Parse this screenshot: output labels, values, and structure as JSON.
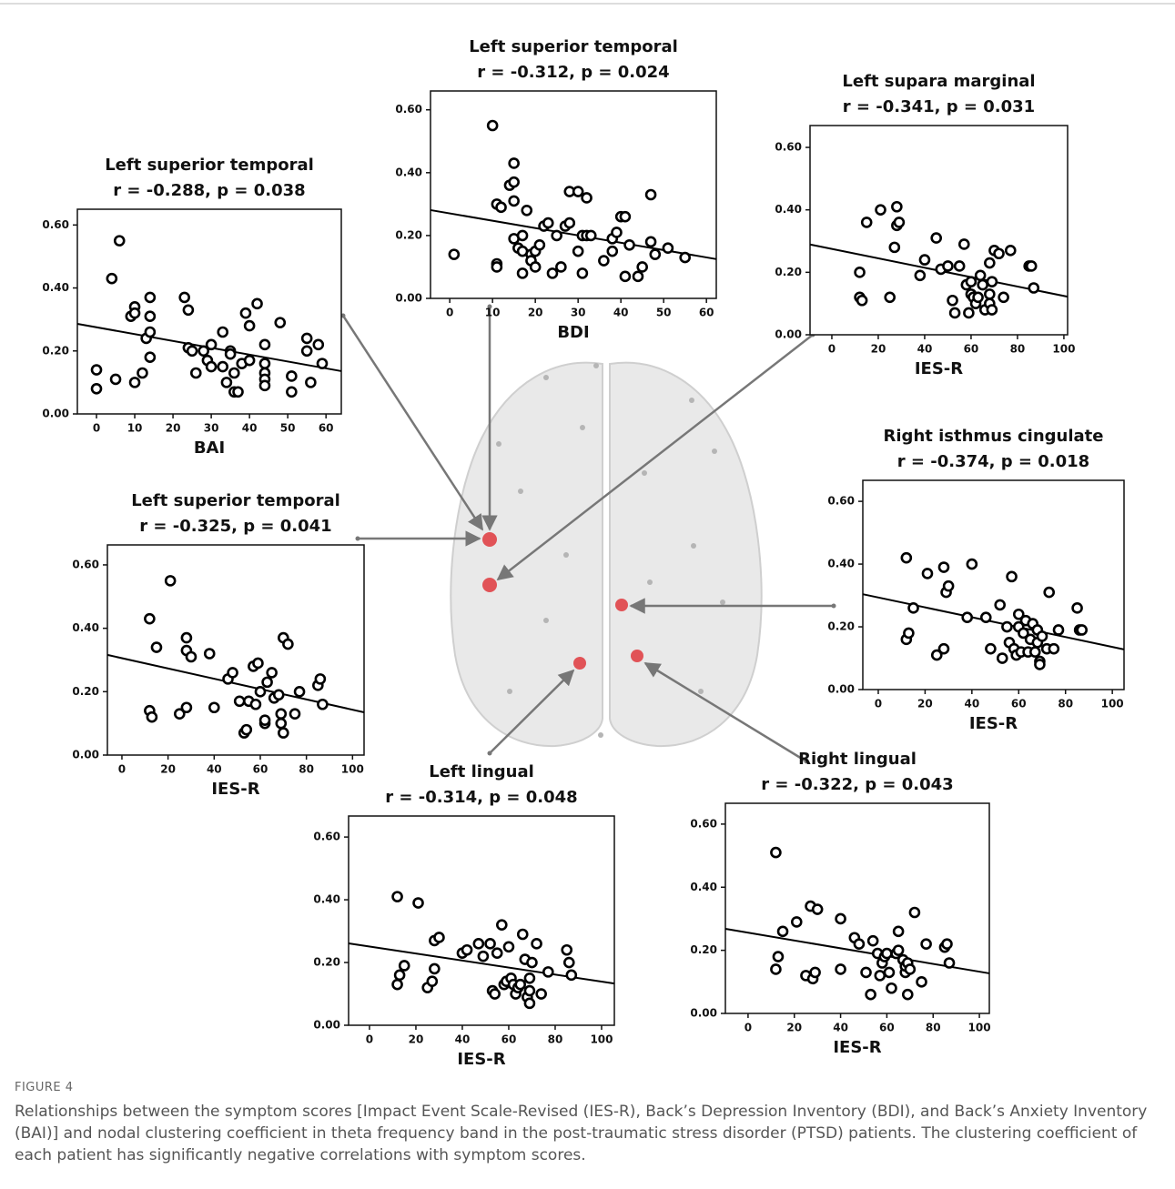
{
  "figure": {
    "label": "FIGURE 4",
    "caption": "Relationships between the symptom scores [Impact Event Scale-Revised (IES-R), Back’s Depression Inventory (BDI), and Back’s Anxiety Inventory (BAI)] and nodal clustering coefficient in theta frequency band in the post-traumatic stress disorder (PTSD) patients. The clustering coefficient of each patient has significantly negative correlations with symptom scores."
  },
  "chart_data": [
    {
      "type": "scatter",
      "title": "Left superior temporal",
      "subtitle": "r = -0.288, p = 0.038",
      "x_label": "BAI",
      "color": "#000000",
      "x": [
        0,
        0,
        4,
        5,
        6,
        9,
        10,
        10,
        10,
        12,
        13,
        14,
        14,
        14,
        14,
        23,
        24,
        24,
        25,
        26,
        28,
        29,
        30,
        30,
        33,
        33,
        34,
        35,
        35,
        36,
        36,
        37,
        38,
        39,
        40,
        40,
        42,
        44,
        44,
        44,
        44,
        44,
        48,
        51,
        51,
        55,
        55,
        56,
        58,
        59
      ],
      "values": [
        0.14,
        0.08,
        0.43,
        0.11,
        0.55,
        0.31,
        0.34,
        0.32,
        0.1,
        0.13,
        0.24,
        0.37,
        0.31,
        0.26,
        0.18,
        0.37,
        0.33,
        0.21,
        0.2,
        0.13,
        0.2,
        0.17,
        0.22,
        0.15,
        0.26,
        0.15,
        0.1,
        0.2,
        0.19,
        0.07,
        0.13,
        0.07,
        0.16,
        0.32,
        0.17,
        0.28,
        0.35,
        0.22,
        0.16,
        0.13,
        0.11,
        0.09,
        0.29,
        0.12,
        0.07,
        0.24,
        0.2,
        0.1,
        0.22,
        0.16
      ],
      "trend_line": {
        "x": [
          -5,
          64
        ],
        "values": [
          0.286,
          0.136
        ]
      },
      "xlim": [
        -5,
        64
      ],
      "ylim": [
        0,
        0.65
      ],
      "xticks": [
        0,
        10,
        20,
        30,
        40,
        50,
        60
      ],
      "yticks": [
        {
          "value": 0,
          "label": "0.00"
        },
        {
          "value": 0.2,
          "label": "0.20"
        },
        {
          "value": 0.4,
          "label": "0.40"
        },
        {
          "value": 0.6,
          "label": "0.60"
        }
      ]
    },
    {
      "type": "scatter",
      "title": "Left superior temporal",
      "subtitle": "r = -0.312, p = 0.024",
      "x_label": "BDI",
      "color": "#000000",
      "x": [
        1,
        10,
        11,
        11,
        11,
        12,
        14,
        15,
        15,
        15,
        15,
        16,
        17,
        17,
        17,
        18,
        19,
        19,
        20,
        20,
        21,
        22,
        23,
        24,
        25,
        26,
        27,
        28,
        28,
        30,
        30,
        31,
        31,
        32,
        32,
        33,
        36,
        38,
        38,
        39,
        40,
        41,
        41,
        42,
        44,
        45,
        47,
        47,
        48,
        51,
        55
      ],
      "values": [
        0.14,
        0.55,
        0.3,
        0.11,
        0.1,
        0.29,
        0.36,
        0.43,
        0.37,
        0.31,
        0.19,
        0.16,
        0.2,
        0.15,
        0.08,
        0.28,
        0.14,
        0.12,
        0.15,
        0.1,
        0.17,
        0.23,
        0.24,
        0.08,
        0.2,
        0.1,
        0.23,
        0.24,
        0.34,
        0.34,
        0.15,
        0.08,
        0.2,
        0.32,
        0.2,
        0.2,
        0.12,
        0.19,
        0.15,
        0.21,
        0.26,
        0.26,
        0.07,
        0.17,
        0.07,
        0.1,
        0.33,
        0.18,
        0.14,
        0.16,
        0.13
      ],
      "trend_line": {
        "x": [
          -4.5,
          62.3
        ],
        "values": [
          0.281,
          0.125
        ]
      },
      "xlim": [
        -4.5,
        62.3
      ],
      "ylim": [
        0,
        0.66
      ],
      "xticks": [
        0,
        10,
        20,
        30,
        40,
        50,
        60
      ],
      "yticks": [
        {
          "value": 0,
          "label": "0.00"
        },
        {
          "value": 0.2,
          "label": "0.20"
        },
        {
          "value": 0.4,
          "label": "0.40"
        },
        {
          "value": 0.6,
          "label": "0.60"
        }
      ]
    },
    {
      "type": "scatter",
      "title": "Left supara marginal",
      "subtitle": "r = -0.341, p = 0.031",
      "x_label": "IES-R",
      "color": "#000000",
      "x": [
        12,
        12,
        13,
        15,
        21,
        25,
        27,
        28,
        28,
        29,
        38,
        40,
        45,
        47,
        50,
        52,
        53,
        55,
        57,
        58,
        59,
        60,
        60,
        61,
        62,
        63,
        64,
        65,
        66,
        68,
        68,
        68,
        69,
        69,
        70,
        72,
        74,
        77,
        85,
        86,
        87
      ],
      "values": [
        0.2,
        0.12,
        0.11,
        0.36,
        0.4,
        0.12,
        0.28,
        0.41,
        0.35,
        0.36,
        0.19,
        0.24,
        0.31,
        0.21,
        0.22,
        0.11,
        0.07,
        0.22,
        0.29,
        0.16,
        0.07,
        0.17,
        0.13,
        0.12,
        0.1,
        0.12,
        0.19,
        0.16,
        0.08,
        0.13,
        0.1,
        0.23,
        0.17,
        0.08,
        0.27,
        0.26,
        0.12,
        0.27,
        0.22,
        0.22,
        0.15
      ],
      "trend_line": {
        "x": [
          -9.4,
          101.6
        ],
        "values": [
          0.289,
          0.122
        ]
      },
      "xlim": [
        -9.4,
        101.6
      ],
      "ylim": [
        0,
        0.67
      ],
      "xticks": [
        0,
        20,
        40,
        60,
        80,
        100
      ],
      "yticks": [
        {
          "value": 0,
          "label": "0.00"
        },
        {
          "value": 0.2,
          "label": "0.20"
        },
        {
          "value": 0.4,
          "label": "0.40"
        },
        {
          "value": 0.6,
          "label": "0.60"
        }
      ]
    },
    {
      "type": "scatter",
      "title": "Right isthmus cingulate",
      "subtitle": "r = -0.374, p = 0.018",
      "x_label": "IES-R",
      "color": "#000000",
      "x": [
        12,
        12,
        13,
        15,
        21,
        25,
        28,
        28,
        29,
        30,
        38,
        40,
        46,
        48,
        52,
        53,
        55,
        56,
        57,
        58,
        59,
        60,
        60,
        61,
        62,
        63,
        64,
        65,
        66,
        67,
        68,
        68,
        69,
        69,
        70,
        72,
        73,
        75,
        77,
        85,
        86,
        87
      ],
      "values": [
        0.42,
        0.16,
        0.18,
        0.26,
        0.37,
        0.11,
        0.39,
        0.13,
        0.31,
        0.33,
        0.23,
        0.4,
        0.23,
        0.13,
        0.27,
        0.1,
        0.2,
        0.15,
        0.36,
        0.13,
        0.11,
        0.24,
        0.2,
        0.12,
        0.18,
        0.22,
        0.12,
        0.16,
        0.21,
        0.12,
        0.19,
        0.15,
        0.09,
        0.08,
        0.17,
        0.13,
        0.31,
        0.13,
        0.19,
        0.26,
        0.19,
        0.19
      ],
      "trend_line": {
        "x": [
          -6.6,
          105
        ],
        "values": [
          0.304,
          0.128
        ]
      },
      "xlim": [
        -6.6,
        105
      ],
      "ylim": [
        0,
        0.667
      ],
      "xticks": [
        0,
        20,
        40,
        60,
        80,
        100
      ],
      "yticks": [
        {
          "value": 0,
          "label": "0.00"
        },
        {
          "value": 0.2,
          "label": "0.20"
        },
        {
          "value": 0.4,
          "label": "0.40"
        },
        {
          "value": 0.6,
          "label": "0.60"
        }
      ]
    },
    {
      "type": "scatter",
      "title": "Left superior temporal",
      "subtitle": "r = -0.325, p = 0.041",
      "x_label": "IES-R",
      "color": "#000000",
      "x": [
        12,
        12,
        13,
        15,
        21,
        25,
        28,
        28,
        28,
        30,
        38,
        40,
        46,
        48,
        51,
        53,
        54,
        55,
        57,
        58,
        59,
        60,
        62,
        62,
        63,
        65,
        66,
        68,
        69,
        69,
        70,
        70,
        72,
        75,
        77,
        85,
        86,
        87
      ],
      "values": [
        0.43,
        0.14,
        0.12,
        0.34,
        0.55,
        0.13,
        0.37,
        0.15,
        0.33,
        0.31,
        0.32,
        0.15,
        0.24,
        0.26,
        0.17,
        0.07,
        0.08,
        0.17,
        0.28,
        0.16,
        0.29,
        0.2,
        0.1,
        0.11,
        0.23,
        0.26,
        0.18,
        0.19,
        0.13,
        0.1,
        0.07,
        0.37,
        0.35,
        0.13,
        0.2,
        0.22,
        0.24,
        0.16
      ],
      "trend_line": {
        "x": [
          -6.3,
          105
        ],
        "values": [
          0.316,
          0.135
        ]
      },
      "xlim": [
        -6.3,
        105
      ],
      "ylim": [
        0,
        0.663
      ],
      "xticks": [
        0,
        20,
        40,
        60,
        80,
        100
      ],
      "yticks": [
        {
          "value": 0,
          "label": "0.00"
        },
        {
          "value": 0.2,
          "label": "0.20"
        },
        {
          "value": 0.4,
          "label": "0.40"
        },
        {
          "value": 0.6,
          "label": "0.60"
        }
      ]
    },
    {
      "type": "scatter",
      "title": "Left lingual",
      "subtitle": "r = -0.314, p = 0.048",
      "x_label": "IES-R",
      "color": "#000000",
      "x": [
        12,
        12,
        13,
        15,
        21,
        25,
        27,
        28,
        28,
        30,
        40,
        42,
        47,
        49,
        52,
        53,
        54,
        55,
        57,
        58,
        59,
        60,
        61,
        62,
        63,
        64,
        65,
        66,
        67,
        68,
        69,
        69,
        69,
        70,
        72,
        74,
        77,
        85,
        86,
        87
      ],
      "values": [
        0.41,
        0.13,
        0.16,
        0.19,
        0.39,
        0.12,
        0.14,
        0.27,
        0.18,
        0.28,
        0.23,
        0.24,
        0.26,
        0.22,
        0.26,
        0.11,
        0.1,
        0.23,
        0.32,
        0.13,
        0.14,
        0.25,
        0.15,
        0.13,
        0.1,
        0.12,
        0.13,
        0.29,
        0.21,
        0.09,
        0.11,
        0.07,
        0.15,
        0.2,
        0.26,
        0.1,
        0.17,
        0.24,
        0.2,
        0.16
      ],
      "trend_line": {
        "x": [
          -9,
          105.5
        ],
        "values": [
          0.261,
          0.133
        ]
      },
      "xlim": [
        -9,
        105.5
      ],
      "ylim": [
        0,
        0.667
      ],
      "xticks": [
        0,
        20,
        40,
        60,
        80,
        100
      ],
      "yticks": [
        {
          "value": 0,
          "label": "0.00"
        },
        {
          "value": 0.2,
          "label": "0.20"
        },
        {
          "value": 0.4,
          "label": "0.40"
        },
        {
          "value": 0.6,
          "label": "0.60"
        }
      ]
    },
    {
      "type": "scatter",
      "title": "Right lingual",
      "subtitle": "r = -0.322, p = 0.043",
      "x_label": "IES-R",
      "color": "#000000",
      "x": [
        12,
        12,
        13,
        15,
        21,
        25,
        27,
        28,
        29,
        30,
        40,
        40,
        46,
        48,
        51,
        53,
        54,
        56,
        57,
        58,
        59,
        60,
        61,
        62,
        64,
        65,
        65,
        67,
        68,
        68,
        69,
        69,
        70,
        72,
        75,
        77,
        85,
        86,
        87
      ],
      "values": [
        0.51,
        0.14,
        0.18,
        0.26,
        0.29,
        0.12,
        0.34,
        0.11,
        0.13,
        0.33,
        0.3,
        0.14,
        0.24,
        0.22,
        0.13,
        0.06,
        0.23,
        0.19,
        0.12,
        0.16,
        0.18,
        0.19,
        0.13,
        0.08,
        0.19,
        0.26,
        0.2,
        0.17,
        0.13,
        0.15,
        0.16,
        0.06,
        0.14,
        0.32,
        0.1,
        0.22,
        0.21,
        0.22,
        0.16
      ],
      "trend_line": {
        "x": [
          -9.8,
          104.3
        ],
        "values": [
          0.268,
          0.127
        ]
      },
      "xlim": [
        -9.8,
        104.3
      ],
      "ylim": [
        0,
        0.666
      ],
      "xticks": [
        0,
        20,
        40,
        60,
        80,
        100
      ],
      "yticks": [
        {
          "value": 0,
          "label": "0.00"
        },
        {
          "value": 0.2,
          "label": "0.20"
        },
        {
          "value": 0.4,
          "label": "0.40"
        },
        {
          "value": 0.6,
          "label": "0.60"
        }
      ]
    }
  ]
}
